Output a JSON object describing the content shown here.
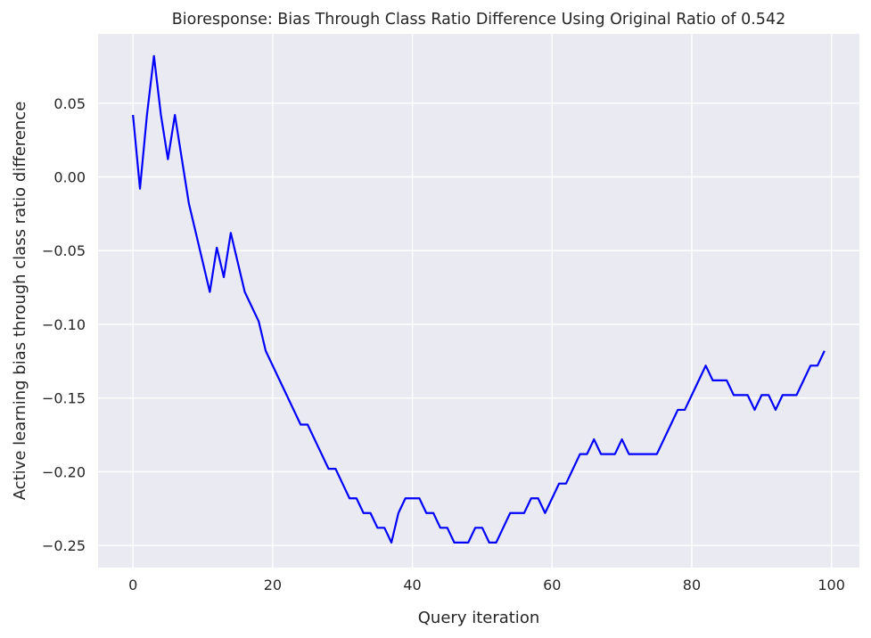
{
  "chart_data": {
    "type": "line",
    "title": "Bioresponse: Bias Through Class Ratio Difference Using Original Ratio of 0.542",
    "xlabel": "Query iteration",
    "ylabel": "Active learning bias through class ratio difference",
    "xlim": [
      -5,
      104
    ],
    "ylim": [
      -0.265,
      0.097
    ],
    "xticks": [
      0,
      20,
      40,
      60,
      80,
      100
    ],
    "xtick_labels": [
      "0",
      "20",
      "40",
      "60",
      "80",
      "100"
    ],
    "yticks": [
      0.05,
      0.0,
      -0.05,
      -0.1,
      -0.15,
      -0.2,
      -0.25
    ],
    "ytick_labels": [
      "0.05",
      "0.00",
      "−0.05",
      "−0.10",
      "−0.15",
      "−0.20",
      "−0.25"
    ],
    "grid": true,
    "colors": {
      "background": "#eaeaf2",
      "grid": "#ffffff",
      "line": "#0000ff"
    },
    "series": [
      {
        "x": [
          0,
          1,
          2,
          3,
          4,
          5,
          6,
          7,
          8,
          9,
          10,
          11,
          12,
          13,
          14,
          15,
          16,
          17,
          18,
          19,
          20,
          21,
          22,
          23,
          24,
          25,
          26,
          27,
          28,
          29,
          30,
          31,
          32,
          33,
          34,
          35,
          36,
          37,
          38,
          39,
          40,
          41,
          42,
          43,
          44,
          45,
          46,
          47,
          48,
          49,
          50,
          51,
          52,
          53,
          54,
          55,
          56,
          57,
          58,
          59,
          60,
          61,
          62,
          63,
          64,
          65,
          66,
          67,
          68,
          69,
          70,
          71,
          72,
          73,
          74,
          75,
          76,
          77,
          78,
          79,
          80,
          81,
          82,
          83,
          84,
          85,
          86,
          87,
          88,
          89,
          90,
          91,
          92,
          93,
          94,
          95,
          96,
          97,
          98,
          99
        ],
        "y": [
          0.042,
          -0.008,
          0.042,
          0.082,
          0.042,
          0.012,
          0.042,
          0.012,
          -0.018,
          -0.038,
          -0.058,
          -0.078,
          -0.048,
          -0.068,
          -0.038,
          -0.058,
          -0.078,
          -0.088,
          -0.098,
          -0.118,
          -0.128,
          -0.138,
          -0.148,
          -0.158,
          -0.168,
          -0.168,
          -0.178,
          -0.188,
          -0.198,
          -0.198,
          -0.208,
          -0.218,
          -0.218,
          -0.228,
          -0.228,
          -0.238,
          -0.238,
          -0.248,
          -0.228,
          -0.218,
          -0.218,
          -0.218,
          -0.228,
          -0.228,
          -0.238,
          -0.238,
          -0.248,
          -0.248,
          -0.248,
          -0.238,
          -0.238,
          -0.248,
          -0.248,
          -0.238,
          -0.228,
          -0.228,
          -0.228,
          -0.218,
          -0.218,
          -0.228,
          -0.218,
          -0.208,
          -0.208,
          -0.198,
          -0.188,
          -0.188,
          -0.178,
          -0.188,
          -0.188,
          -0.188,
          -0.178,
          -0.188,
          -0.188,
          -0.188,
          -0.188,
          -0.188,
          -0.178,
          -0.168,
          -0.158,
          -0.158,
          -0.148,
          -0.138,
          -0.128,
          -0.138,
          -0.138,
          -0.138,
          -0.148,
          -0.148,
          -0.148,
          -0.158,
          -0.148,
          -0.148,
          -0.158,
          -0.148,
          -0.148,
          -0.148,
          -0.138,
          -0.128,
          -0.128,
          -0.118
        ]
      }
    ]
  }
}
